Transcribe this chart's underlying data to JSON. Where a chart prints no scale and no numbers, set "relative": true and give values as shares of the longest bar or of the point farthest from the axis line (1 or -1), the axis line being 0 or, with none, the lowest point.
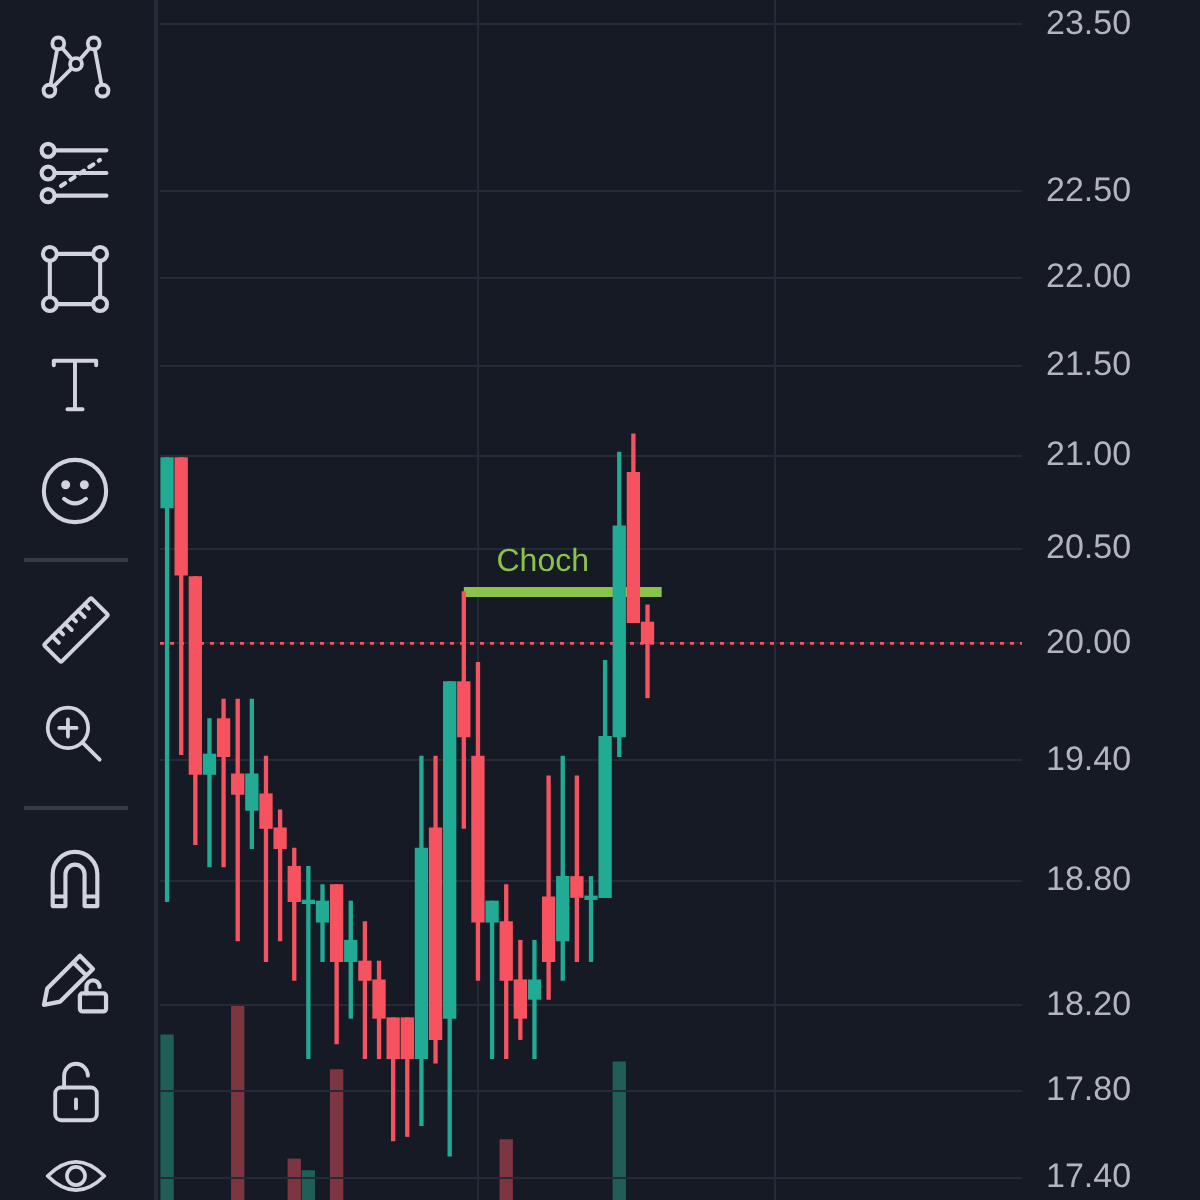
{
  "chart_data": [
    {
      "type": "candlestick",
      "log": "y",
      "grid": true,
      "tick_labels": "y",
      "ylim": [
        17.3,
        23.65
      ],
      "yticks": [
        {
          "value": 23.5,
          "label": "23.50"
        },
        {
          "value": 22.5,
          "label": "22.50"
        },
        {
          "value": 22,
          "label": "22.00"
        },
        {
          "value": 21.5,
          "label": "21.50"
        },
        {
          "value": 21,
          "label": "21.00"
        },
        {
          "value": 20.5,
          "label": "20.50"
        },
        {
          "value": 20,
          "label": "20.00"
        },
        {
          "value": 19.4,
          "label": "19.40"
        },
        {
          "value": 18.8,
          "label": "18.80"
        },
        {
          "value": 18.2,
          "label": "18.20"
        },
        {
          "value": 17.8,
          "label": "17.80"
        },
        {
          "value": 17.4,
          "label": "17.40"
        }
      ],
      "categories": [
        null,
        null,
        null,
        null,
        null,
        null,
        null,
        null,
        null,
        null,
        null,
        null,
        null,
        null,
        null,
        null,
        null,
        null,
        null,
        null,
        null,
        null,
        null,
        null,
        null,
        null,
        null,
        null,
        null,
        null,
        null,
        null,
        null,
        null,
        null,
        null,
        null,
        null,
        null,
        null,
        null,
        null,
        null,
        null,
        null,
        null,
        null,
        null,
        null,
        null,
        null,
        null,
        null,
        null,
        null,
        null,
        null,
        null,
        null,
        null,
        null
      ],
      "ohlc": [
        [
          20.72,
          20.99,
          18.7,
          20.99
        ],
        [
          20.99,
          20.99,
          19.43,
          20.36
        ],
        [
          20.35,
          20.35,
          18.98,
          19.33
        ],
        [
          19.33,
          19.61,
          18.87,
          19.43
        ],
        [
          19.61,
          19.71,
          18.87,
          19.42
        ],
        [
          19.33,
          19.71,
          18.51,
          19.23
        ],
        [
          19.15,
          19.71,
          18.96,
          19.33
        ],
        [
          19.23,
          19.42,
          18.41,
          19.06
        ],
        [
          19.06,
          19.15,
          18.51,
          18.96
        ],
        [
          18.87,
          18.96,
          18.32,
          18.7
        ],
        [
          18.69,
          18.87,
          17.95,
          18.7
        ],
        [
          18.6,
          18.78,
          18.41,
          18.7
        ],
        [
          18.78,
          18.78,
          18.02,
          18.41
        ],
        [
          18.41,
          18.7,
          18.14,
          18.51
        ],
        [
          18.41,
          18.6,
          17.95,
          18.32
        ],
        [
          18.32,
          18.41,
          17.95,
          18.14
        ],
        [
          18.14,
          18.14,
          17.57,
          17.95
        ],
        [
          18.14,
          18.14,
          17.59,
          17.95
        ],
        [
          17.95,
          19.42,
          17.64,
          18.96
        ],
        [
          19.06,
          19.42,
          17.93,
          18.04
        ],
        [
          18.14,
          19.8,
          17.5,
          19.8
        ],
        [
          19.8,
          20.27,
          19.06,
          19.52
        ],
        [
          19.42,
          19.9,
          18.32,
          18.6
        ],
        [
          18.6,
          18.7,
          17.95,
          18.7
        ],
        [
          18.6,
          18.78,
          17.95,
          18.32
        ],
        [
          18.32,
          18.51,
          18.04,
          18.14
        ],
        [
          18.23,
          18.51,
          17.95,
          18.32
        ],
        [
          18.72,
          19.32,
          18.23,
          18.41
        ],
        [
          18.51,
          19.42,
          18.32,
          18.82
        ],
        [
          18.82,
          19.32,
          18.41,
          18.72
        ],
        [
          18.71,
          18.82,
          18.41,
          18.72
        ],
        [
          18.72,
          19.91,
          18.72,
          19.52
        ],
        [
          19.52,
          21.02,
          19.42,
          20.62
        ],
        [
          20.91,
          21.12,
          20.11,
          20.11
        ],
        [
          20.11,
          20.2,
          19.72,
          20.0
        ],
        null,
        null,
        null,
        null,
        null,
        null,
        null,
        null,
        null,
        null,
        null,
        null,
        null,
        null,
        null,
        null,
        null,
        null,
        null,
        null,
        null,
        null,
        null,
        null,
        null,
        null
      ],
      "colors": [
        "#22ab94",
        "#f7525f",
        "#f7525f",
        "#22ab94",
        "#f7525f",
        "#f7525f",
        "#22ab94",
        "#f7525f",
        "#f7525f",
        "#f7525f",
        "#22ab94",
        "#22ab94",
        "#f7525f",
        "#22ab94",
        "#f7525f",
        "#f7525f",
        "#f7525f",
        "#f7525f",
        "#22ab94",
        "#f7525f",
        "#22ab94",
        "#f7525f",
        "#f7525f",
        "#22ab94",
        "#f7525f",
        "#f7525f",
        "#22ab94",
        "#f7525f",
        "#22ab94",
        "#f7525f",
        "#22ab94",
        "#22ab94",
        "#22ab94",
        "#f7525f",
        "#f7525f",
        null,
        null,
        null,
        null,
        null,
        null,
        null,
        null,
        null,
        null,
        null,
        null,
        null,
        null,
        null,
        null,
        null,
        null,
        null,
        null,
        null,
        null,
        null,
        null,
        null,
        null
      ],
      "ref_lines": [
        {
          "axis": "y",
          "value": 20,
          "color": "#f7525f",
          "line_style": "dotted"
        }
      ],
      "series": [
        {
          "name": "Choch",
          "type": "line",
          "color": "#8bc34a",
          "values": [
            null,
            null,
            null,
            null,
            null,
            null,
            null,
            null,
            null,
            null,
            null,
            null,
            null,
            null,
            null,
            null,
            null,
            null,
            null,
            null,
            null,
            20.27,
            20.27,
            20.27,
            20.27,
            20.27,
            20.27,
            20.27,
            20.27,
            20.27,
            20.27,
            20.27,
            20.27,
            20.27,
            20.27,
            20.27,
            null,
            null,
            null,
            null,
            null,
            null,
            null,
            null,
            null,
            null,
            null,
            null,
            null,
            null,
            null,
            null,
            null,
            null,
            null,
            null,
            null,
            null,
            null,
            null,
            null
          ]
        }
      ]
    },
    {
      "type": "bar",
      "relative": true,
      "categories": [
        null,
        null,
        null,
        null,
        null,
        null,
        null,
        null,
        null,
        null,
        null,
        null,
        null,
        null,
        null,
        null,
        null,
        null,
        null,
        null,
        null,
        null,
        null,
        null,
        null,
        null,
        null,
        null,
        null,
        null,
        null,
        null,
        null,
        null,
        null,
        null,
        null,
        null,
        null,
        null,
        null,
        null,
        null,
        null,
        null,
        null,
        null,
        null,
        null,
        null,
        null,
        null,
        null,
        null,
        null,
        null,
        null,
        null,
        null,
        null,
        null
      ],
      "values": [
        0.85,
        null,
        null,
        null,
        null,
        1,
        null,
        null,
        null,
        0.21,
        0.15,
        null,
        0.67,
        null,
        null,
        null,
        null,
        null,
        null,
        null,
        null,
        null,
        null,
        null,
        0.31,
        null,
        null,
        null,
        null,
        null,
        null,
        null,
        0.71,
        null,
        null,
        null,
        null,
        null,
        null,
        null,
        null,
        null,
        null,
        null,
        null,
        null,
        null,
        null,
        null,
        null,
        null,
        null,
        null,
        null,
        null,
        null,
        null,
        null,
        null,
        null,
        null
      ],
      "colors": [
        "#1f5f57",
        null,
        null,
        null,
        null,
        "#7d3541",
        null,
        null,
        null,
        "#7d3541",
        "#1f5f57",
        null,
        "#7d3541",
        null,
        null,
        null,
        null,
        null,
        null,
        null,
        null,
        null,
        null,
        null,
        "#7d3541",
        null,
        null,
        null,
        null,
        null,
        null,
        null,
        "#1f5f57",
        null,
        null,
        null,
        null,
        null,
        null,
        null,
        null,
        null,
        null,
        null,
        null,
        null,
        null,
        null,
        null,
        null,
        null,
        null,
        null,
        null,
        null,
        null,
        null,
        null,
        null,
        null,
        null
      ]
    }
  ]
}
